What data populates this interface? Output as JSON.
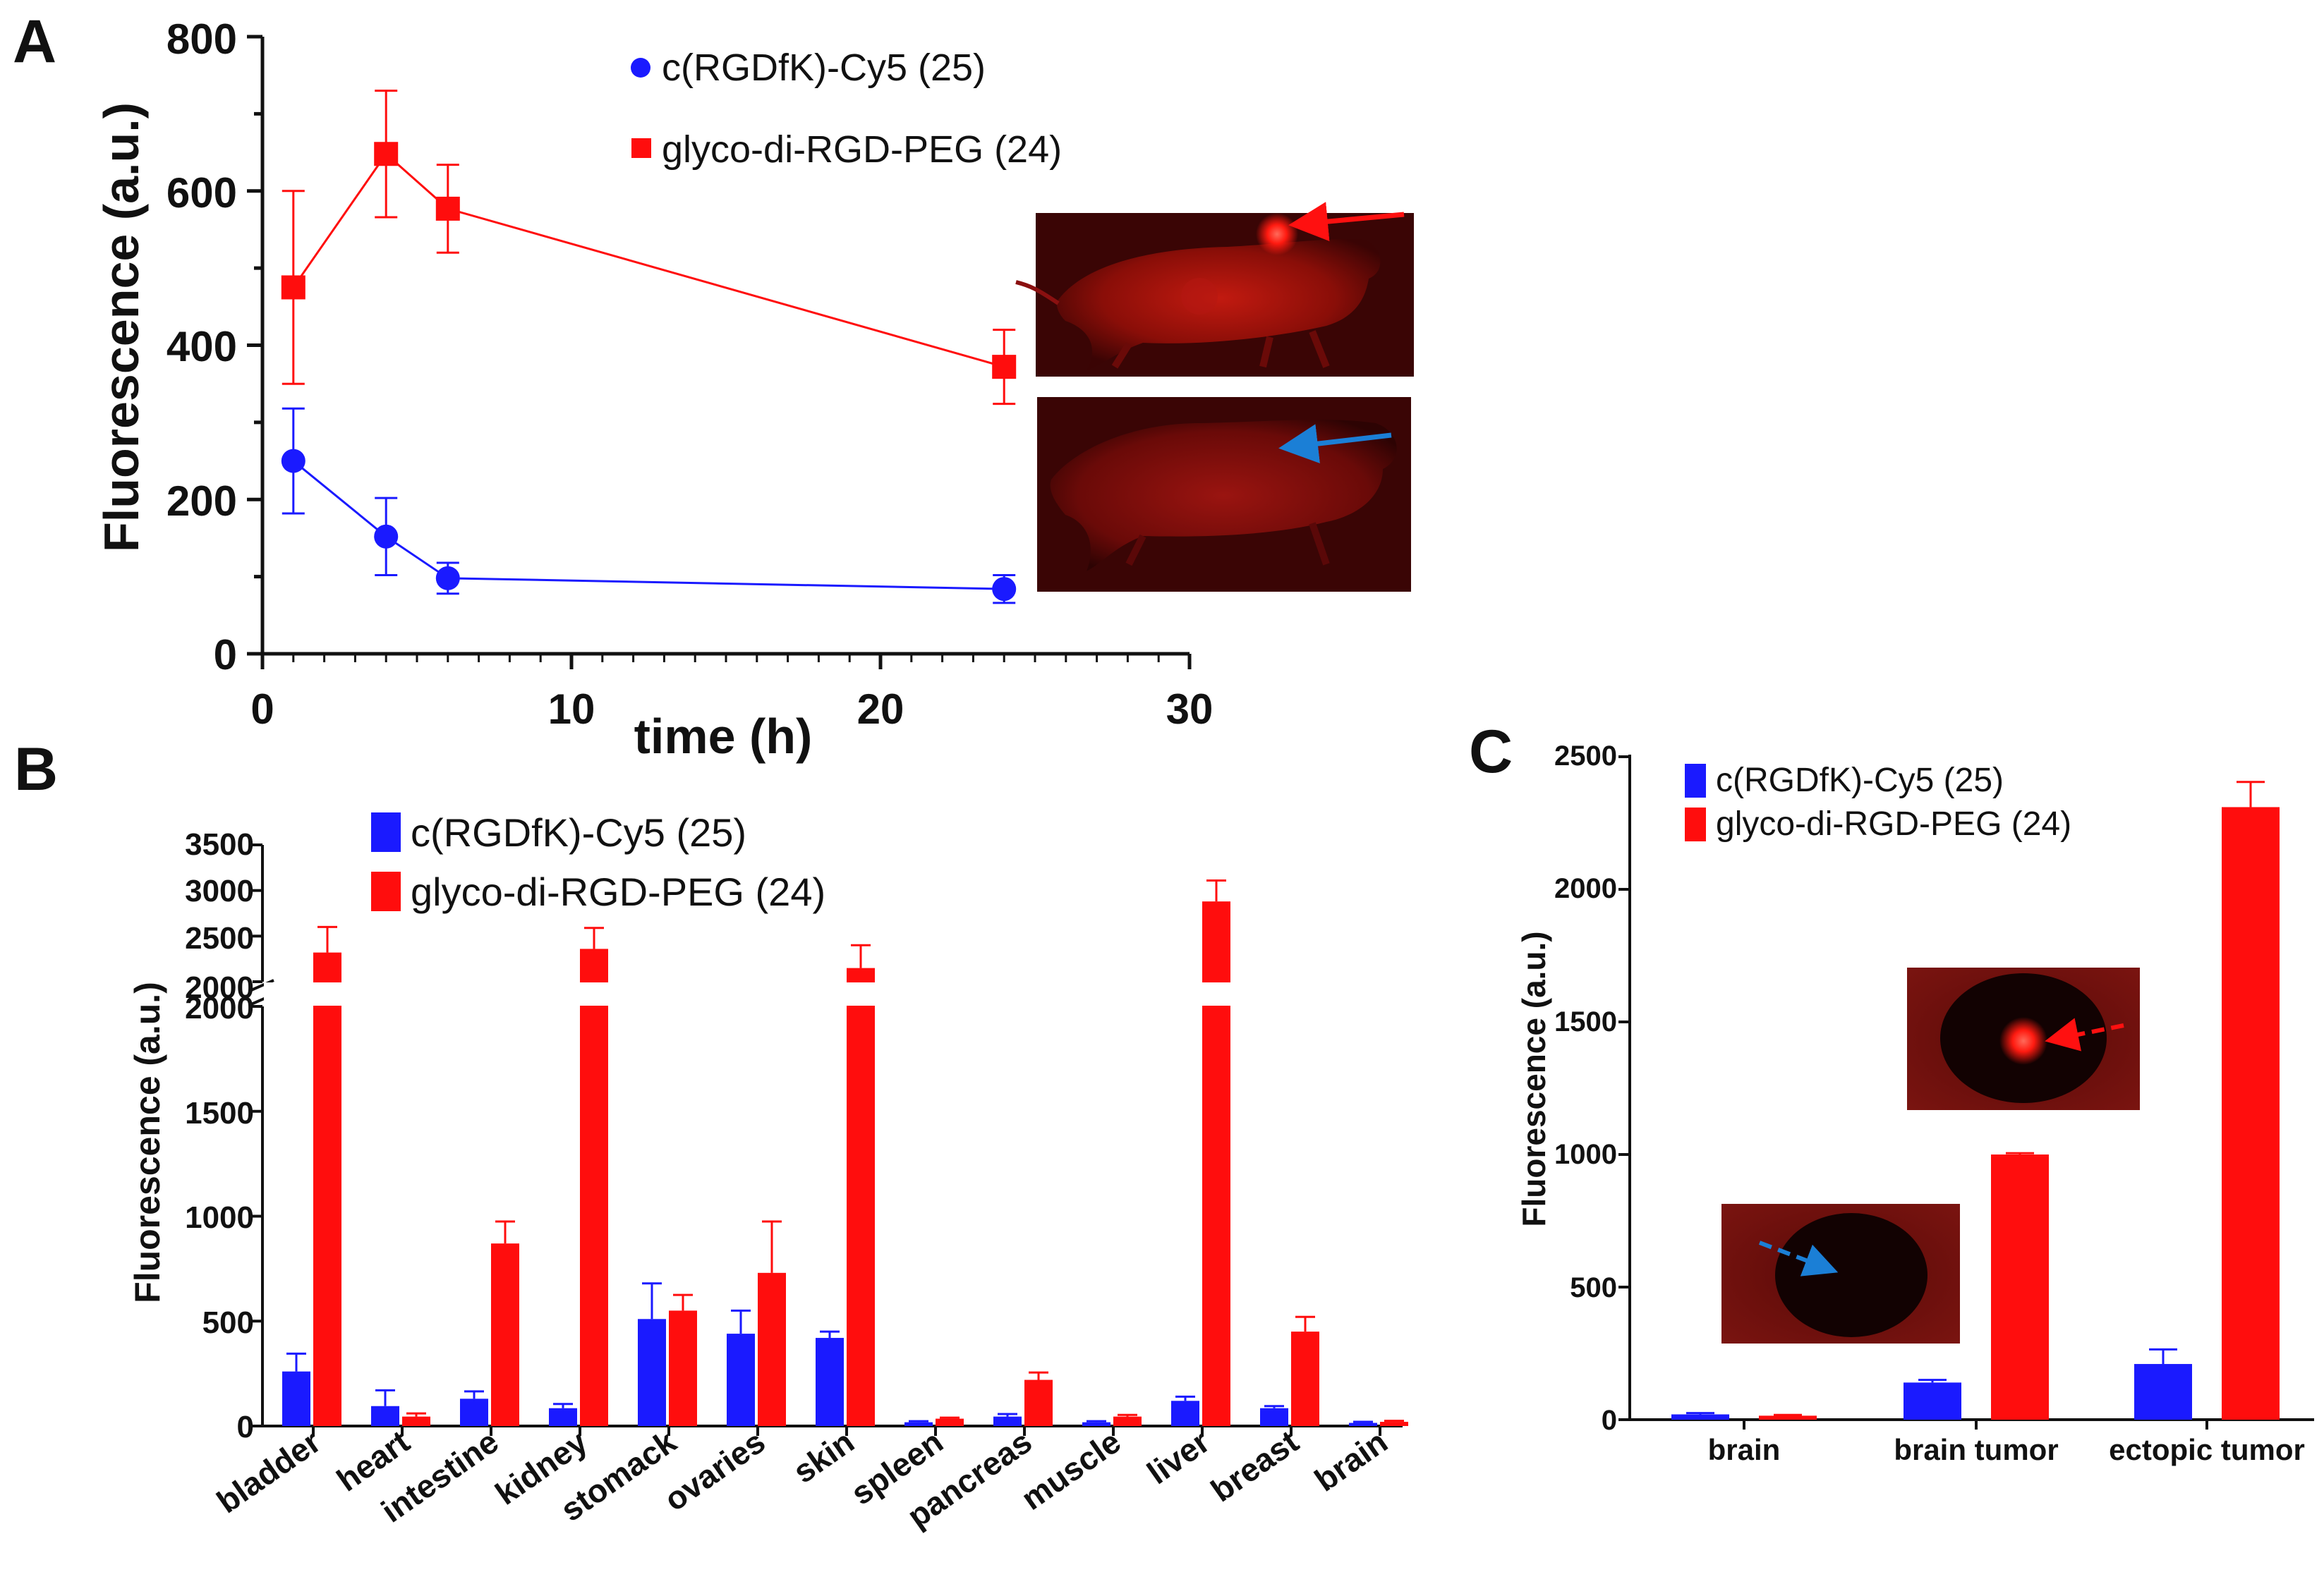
{
  "panel_labels": {
    "a": "A",
    "b": "B",
    "c": "C"
  },
  "colors": {
    "blue": "#1a1aff",
    "red": "#ff0d0d",
    "blue_arrow": "#1b7fd6",
    "dark_red_bg": "#3a0505"
  },
  "chart_data": [
    {
      "id": "A",
      "type": "line",
      "xlabel": "time (h)",
      "ylabel": "Fluorescence (a.u.)",
      "xlim": [
        0,
        30
      ],
      "ylim": [
        0,
        800
      ],
      "xticks": [
        "0",
        "10",
        "20",
        "30"
      ],
      "yticks": [
        "0",
        "200",
        "400",
        "600",
        "800"
      ],
      "legend_position": "top-center",
      "series": [
        {
          "name": "c(RGDfK)-Cy5 (25)",
          "marker": "circle",
          "color": "#1a1aff",
          "x": [
            1,
            4,
            6,
            24
          ],
          "y": [
            250,
            152,
            98,
            84
          ],
          "err": [
            68,
            50,
            20,
            18
          ]
        },
        {
          "name": "glyco-di-RGD-PEG (24)",
          "marker": "square",
          "color": "#ff0d0d",
          "x": [
            1,
            4,
            6,
            24
          ],
          "y": [
            475,
            648,
            577,
            372
          ],
          "err": [
            125,
            82,
            57,
            48
          ]
        }
      ],
      "insets": [
        "mouse fluorescence image with red arrow (glyco-di-RGD-PEG)",
        "mouse fluorescence image with blue arrow (c(RGDfK)-Cy5)"
      ]
    },
    {
      "id": "B",
      "type": "bar",
      "ylabel": "Fluorescence (a.u.)",
      "categories": [
        "bladder",
        "heart",
        "intestine",
        "kidney",
        "stomack",
        "ovaries",
        "skin",
        "spleen",
        "pancreas",
        "muscle",
        "liver",
        "breast",
        "brain"
      ],
      "yticks_lower": [
        "0",
        "500",
        "1000",
        "1500",
        "2000"
      ],
      "yticks_upper": [
        "2000",
        "2500",
        "3000",
        "3500"
      ],
      "ylim_lower": [
        0,
        2000
      ],
      "ylim_upper": [
        2000,
        3500
      ],
      "legend_position": "top-left",
      "series": [
        {
          "name": "c(RGDfK)-Cy5 (25)",
          "color": "#1a1aff",
          "values": [
            260,
            95,
            130,
            85,
            510,
            440,
            420,
            18,
            45,
            18,
            120,
            85,
            15
          ],
          "err": [
            85,
            75,
            35,
            20,
            170,
            110,
            30,
            5,
            12,
            5,
            20,
            10,
            5
          ]
        },
        {
          "name": "glyco-di-RGD-PEG (24)",
          "color": "#ff0d0d",
          "values": [
            2320,
            45,
            870,
            2360,
            550,
            730,
            2150,
            35,
            220,
            45,
            2880,
            450,
            20
          ],
          "err": [
            280,
            15,
            105,
            230,
            75,
            245,
            250,
            5,
            35,
            8,
            230,
            70,
            5
          ]
        }
      ]
    },
    {
      "id": "C",
      "type": "bar",
      "ylabel": "Fluorescence (a.u.)",
      "categories": [
        "brain",
        "brain tumor",
        "ectopic tumor"
      ],
      "ylim": [
        0,
        2500
      ],
      "yticks": [
        "0",
        "500",
        "1000",
        "1500",
        "2000",
        "2500"
      ],
      "legend_position": "top-left",
      "series": [
        {
          "name": "c(RGDfK)-Cy5 (25)",
          "color": "#1a1aff",
          "values": [
            20,
            140,
            210
          ],
          "err": [
            5,
            10,
            55
          ]
        },
        {
          "name": "glyco-di-RGD-PEG (24)",
          "color": "#ff0d0d",
          "values": [
            15,
            1000,
            2310
          ],
          "err": [
            3,
            5,
            95
          ]
        }
      ],
      "insets": [
        "brain section with red dashed arrow (tumor)",
        "brain section with blue dashed arrow"
      ]
    }
  ]
}
